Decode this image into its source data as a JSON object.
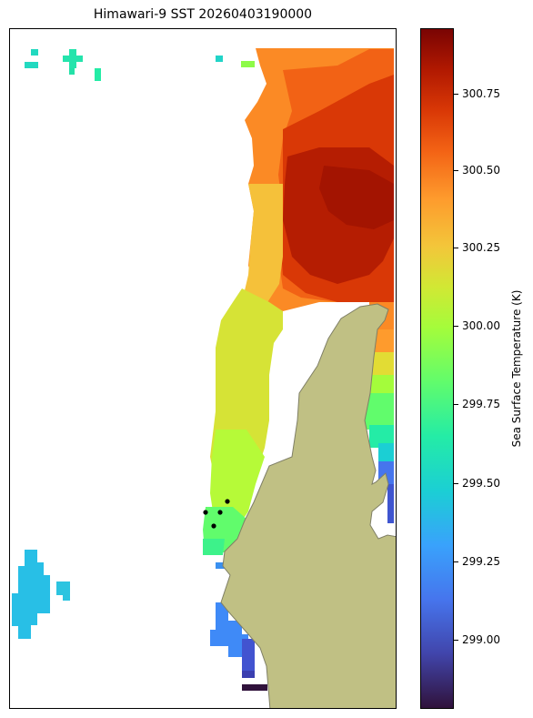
{
  "title": "Himawari-9 SST 20260403190000",
  "colorbar": {
    "label": "Sea Surface Temperature (K)",
    "ticks": [
      "300.75",
      "300.50",
      "300.25",
      "300.00",
      "299.75",
      "299.50",
      "299.25",
      "299.00"
    ]
  },
  "colors": {
    "land": "#c0c084",
    "coast": "#7f7f66",
    "markers": "#000000"
  },
  "chart_data": {
    "type": "heatmap",
    "title": "Himawari-9 SST 20260403190000",
    "colorbar_label": "Sea Surface Temperature (K)",
    "value_range": [
      298.78,
      300.96
    ],
    "colormap": "turbo",
    "colorbar_ticks": [
      300.75,
      300.5,
      300.25,
      300.0,
      299.75,
      299.5,
      299.25,
      299.0
    ],
    "station_markers": 4
  }
}
